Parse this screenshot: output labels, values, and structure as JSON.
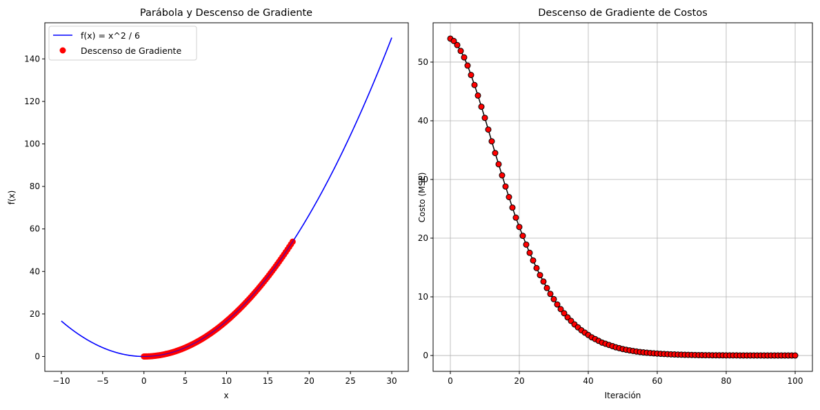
{
  "chart_data": [
    {
      "type": "line",
      "title": "Parábola y Descenso de Gradiente",
      "xlabel": "x",
      "ylabel": "f(x)",
      "xlim": [
        -12,
        32
      ],
      "ylim": [
        -7,
        157
      ],
      "xticks": [
        -10,
        -5,
        0,
        5,
        10,
        15,
        20,
        25,
        30
      ],
      "yticks": [
        0,
        20,
        40,
        60,
        80,
        100,
        120,
        140
      ],
      "grid": false,
      "legend_position": "top-left",
      "series": [
        {
          "name": "f(x) = x^2 / 6",
          "type": "line",
          "color": "#0000ff",
          "function": "x^2 / 6",
          "x_range": [
            -10,
            30
          ]
        },
        {
          "name": "Descenso de Gradiente",
          "type": "scatter",
          "color": "#ff0000",
          "x_start": 18,
          "x_end": 0,
          "points": 101
        }
      ]
    },
    {
      "type": "line",
      "title": "Descenso de Gradiente de Costos",
      "xlabel": "Iteración",
      "ylabel": "Costo (MSE)",
      "xlim": [
        -5,
        105
      ],
      "ylim": [
        -2.7,
        56.7
      ],
      "xticks": [
        0,
        20,
        40,
        60,
        80,
        100
      ],
      "yticks": [
        0,
        10,
        20,
        30,
        40,
        50
      ],
      "grid": true,
      "line_color": "#000000",
      "marker_color": "#ff0000",
      "marker_edge": "#000000",
      "x": [
        0,
        1,
        2,
        3,
        4,
        5,
        6,
        7,
        8,
        9,
        10,
        11,
        12,
        13,
        14,
        15,
        16,
        17,
        18,
        19,
        20,
        21,
        22,
        23,
        24,
        25,
        26,
        27,
        28,
        29,
        30,
        31,
        32,
        33,
        34,
        35,
        36,
        37,
        38,
        39,
        40,
        41,
        42,
        43,
        44,
        45,
        46,
        47,
        48,
        49,
        50,
        51,
        52,
        53,
        54,
        55,
        56,
        57,
        58,
        59,
        60,
        61,
        62,
        63,
        64,
        65,
        66,
        67,
        68,
        69,
        70,
        71,
        72,
        73,
        74,
        75,
        76,
        77,
        78,
        79,
        80,
        81,
        82,
        83,
        84,
        85,
        86,
        87,
        88,
        89,
        90,
        91,
        92,
        93,
        94,
        95,
        96,
        97,
        98,
        99,
        100
      ],
      "y": [
        54.0,
        53.6,
        52.9,
        51.9,
        50.8,
        49.4,
        47.8,
        46.1,
        44.3,
        42.4,
        40.5,
        38.5,
        36.5,
        34.5,
        32.6,
        30.7,
        28.8,
        27.0,
        25.2,
        23.5,
        21.9,
        20.4,
        18.9,
        17.5,
        16.2,
        14.9,
        13.7,
        12.6,
        11.5,
        10.5,
        9.6,
        8.7,
        7.9,
        7.2,
        6.5,
        5.9,
        5.3,
        4.8,
        4.3,
        3.9,
        3.5,
        3.1,
        2.8,
        2.5,
        2.2,
        2.0,
        1.8,
        1.6,
        1.4,
        1.25,
        1.1,
        0.98,
        0.87,
        0.77,
        0.68,
        0.6,
        0.53,
        0.47,
        0.42,
        0.37,
        0.33,
        0.29,
        0.26,
        0.23,
        0.2,
        0.18,
        0.16,
        0.14,
        0.12,
        0.11,
        0.1,
        0.08,
        0.07,
        0.06,
        0.05,
        0.05,
        0.04,
        0.04,
        0.03,
        0.03,
        0.02,
        0.02,
        0.02,
        0.02,
        0.01,
        0.01,
        0.01,
        0.01,
        0.01,
        0.01,
        0.01,
        0.0,
        0.0,
        0.0,
        0.0,
        0.0,
        0.0,
        0.0,
        0.0,
        0.0,
        0.0
      ]
    }
  ]
}
